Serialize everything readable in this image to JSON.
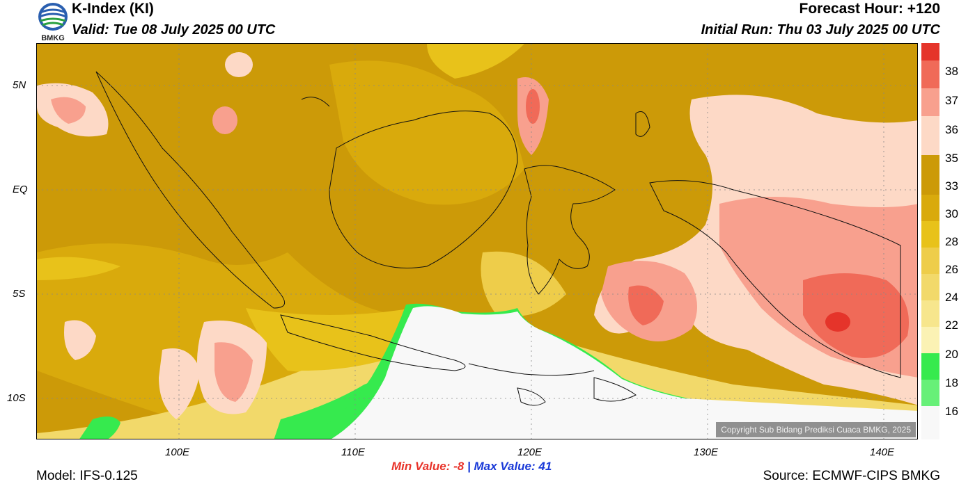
{
  "header": {
    "logo_text": "BMKG",
    "title": "K-Index (KI)",
    "valid": "Valid: Tue 08 July 2025 00 UTC",
    "forecast_hour": "Forecast Hour: +120",
    "initial_run": "Initial Run: Thu 03 July 2025 00 UTC"
  },
  "map": {
    "lat_labels": [
      "5N",
      "EQ",
      "5S",
      "10S"
    ],
    "lon_labels": [
      "100E",
      "110E",
      "120E",
      "130E",
      "140E"
    ],
    "copyright": "Copyright Sub Bidang Prediksi Cuaca BMKG, 2025"
  },
  "colorbar": {
    "labels": [
      "38",
      "37",
      "36",
      "35",
      "33",
      "30",
      "28",
      "26",
      "24",
      "22",
      "20",
      "18",
      "16"
    ],
    "colors": [
      "#e5342a",
      "#f06a58",
      "#f8a08e",
      "#fdd9c6",
      "#cc9a08",
      "#d9aa0c",
      "#e8c21a",
      "#eecd4a",
      "#f2d96a",
      "#f7e68d",
      "#fbf2b4",
      "#36ea4e",
      "#67f078",
      "#a2f4ab",
      "#f8f8f8"
    ]
  },
  "stats": {
    "min_label": "Min Value:",
    "min_value": "-8",
    "separator": "|",
    "max_label": "Max Value:",
    "max_value": "41"
  },
  "footer": {
    "model": "Model: IFS-0.125",
    "source": "Source: ECMWF-CIPS BMKG"
  }
}
